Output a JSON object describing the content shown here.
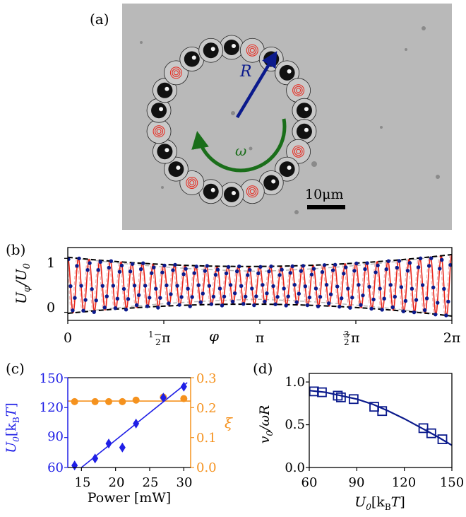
{
  "panels": {
    "a": {
      "label": "(a)",
      "radius_label": "R",
      "omega_label": "ω",
      "scalebar_label": "10μm"
    },
    "b": {
      "label": "(b)",
      "ylabel": "U_φ/U_0",
      "xlabel": "φ",
      "yticks": [
        "0",
        "1"
      ],
      "xticks": [
        "0",
        "½π",
        "π",
        "3/2π",
        "2π"
      ]
    },
    "c": {
      "label": "(c)",
      "ylabel_left": "U_0[k_BT]",
      "ylabel_right": "ξ",
      "xlabel": "Power [mW]",
      "yticks_left": [
        "60",
        "90",
        "120",
        "150"
      ],
      "yticks_right": [
        "0.0",
        "0.1",
        "0.2",
        "0.3"
      ],
      "xticks": [
        "15",
        "20",
        "25",
        "30"
      ]
    },
    "d": {
      "label": "(d)",
      "ylabel": "v_0/ωR",
      "xlabel": "U_0[k_BT]",
      "yticks": [
        "0.0",
        "0.5",
        "1.0"
      ],
      "xticks": [
        "60",
        "90",
        "120",
        "150"
      ]
    }
  },
  "colors": {
    "blue": "#1f1fe6",
    "navy": "#0b1a8c",
    "orange": "#f5921e",
    "red": "#e8251a",
    "green": "#1a6e1a",
    "envelope": "#000000",
    "ghost": "#b8b8b8",
    "ghost_pink": "#f0b0b0"
  },
  "chart_data": [
    {
      "panel": "b",
      "type": "line",
      "xlim": [
        0,
        6.2832
      ],
      "ylim": [
        -0.15,
        1.2
      ],
      "periods": 36,
      "amplitude_phase_start": 0.1,
      "envelope": {
        "upper": {
          "x": [
            0,
            3.1416,
            6.2832
          ],
          "y": [
            1.02,
            0.85,
            1.07
          ]
        },
        "lower": {
          "x": [
            0,
            3.1416,
            6.2832
          ],
          "y": [
            -0.02,
            0.15,
            -0.07
          ]
        }
      },
      "series": [
        {
          "kind": "measured points"
        },
        {
          "kind": "fit"
        }
      ]
    },
    {
      "panel": "c",
      "type": "scatter",
      "xlim": [
        13,
        31
      ],
      "ylim": [
        60,
        150
      ],
      "y2lim": [
        0,
        0.3
      ],
      "series": [
        {
          "axis": "left",
          "marker": "diamond",
          "x": [
            14,
            17,
            19,
            21,
            23,
            27,
            30
          ],
          "y": [
            62,
            69,
            84,
            80,
            104,
            130,
            141
          ]
        },
        {
          "axis": "left",
          "kind": "line",
          "x": [
            15,
            30.5
          ],
          "y": [
            60,
            145
          ]
        },
        {
          "axis": "right",
          "marker": "circle",
          "x": [
            14,
            17,
            19,
            21,
            23,
            27,
            30
          ],
          "y": [
            0.22,
            0.22,
            0.22,
            0.22,
            0.225,
            0.235,
            0.23
          ]
        },
        {
          "axis": "right",
          "kind": "line",
          "x": [
            13,
            31
          ],
          "y": [
            0.222,
            0.222
          ]
        }
      ]
    },
    {
      "panel": "d",
      "type": "scatter",
      "xlim": [
        60,
        150
      ],
      "ylim": [
        0,
        1.1
      ],
      "series": [
        {
          "marker": "square",
          "x": [
            63,
            68,
            78,
            80,
            88,
            101,
            106,
            132,
            137,
            144
          ],
          "y": [
            0.89,
            0.88,
            0.84,
            0.82,
            0.8,
            0.71,
            0.66,
            0.46,
            0.4,
            0.33
          ]
        },
        {
          "kind": "line",
          "x": [
            60,
            70,
            80,
            90,
            100,
            110,
            120,
            130,
            140,
            150
          ],
          "y": [
            0.9,
            0.88,
            0.84,
            0.8,
            0.74,
            0.66,
            0.57,
            0.47,
            0.37,
            0.26
          ]
        }
      ]
    }
  ]
}
